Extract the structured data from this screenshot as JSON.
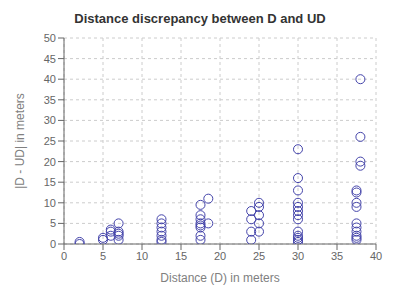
{
  "chart_data": {
    "type": "scatter",
    "title": "Distance discrepancy between D and UD",
    "xlabel": "Distance (D) in meters",
    "ylabel": "|D - UD| in meters",
    "xlim": [
      0,
      40
    ],
    "ylim": [
      0,
      50
    ],
    "xticks": [
      0,
      5,
      10,
      15,
      20,
      25,
      30,
      35,
      40
    ],
    "yticks": [
      0,
      5,
      10,
      15,
      20,
      25,
      30,
      35,
      40,
      45,
      50
    ],
    "color": "#4444aa",
    "marker": "circle",
    "grid": true,
    "x": [
      2,
      2,
      5,
      5,
      6,
      6,
      6,
      7,
      7,
      7,
      7,
      7,
      12.5,
      12.5,
      12.5,
      12.5,
      12.5,
      12.5,
      12.5,
      17.5,
      17.5,
      17.5,
      17.5,
      17.5,
      17.5,
      17.5,
      17.5,
      18.5,
      18.5,
      24,
      24,
      24,
      24,
      25,
      25,
      25,
      25,
      25,
      30,
      30,
      30,
      30,
      30,
      30,
      30,
      30,
      30,
      30,
      30,
      30,
      30,
      37.5,
      37.5,
      37.5,
      37.5,
      37.5,
      37.5,
      37.5,
      37.5,
      37.5,
      37.5,
      38,
      38,
      38,
      38
    ],
    "y": [
      0.5,
      0,
      1,
      1.5,
      3,
      3.5,
      2,
      1,
      2,
      2.5,
      3,
      5,
      0.5,
      1,
      2,
      3,
      4,
      5,
      6,
      1,
      2,
      4,
      4.5,
      5,
      6,
      7,
      9.5,
      11,
      5,
      1,
      3,
      6,
      8,
      3,
      5,
      7,
      9,
      10,
      0.5,
      1,
      1.5,
      2,
      3,
      6,
      7,
      8,
      9,
      10,
      13,
      16,
      23,
      1,
      1.5,
      2,
      3,
      4,
      5,
      9,
      10,
      12.5,
      13,
      19,
      20,
      26,
      40
    ]
  }
}
